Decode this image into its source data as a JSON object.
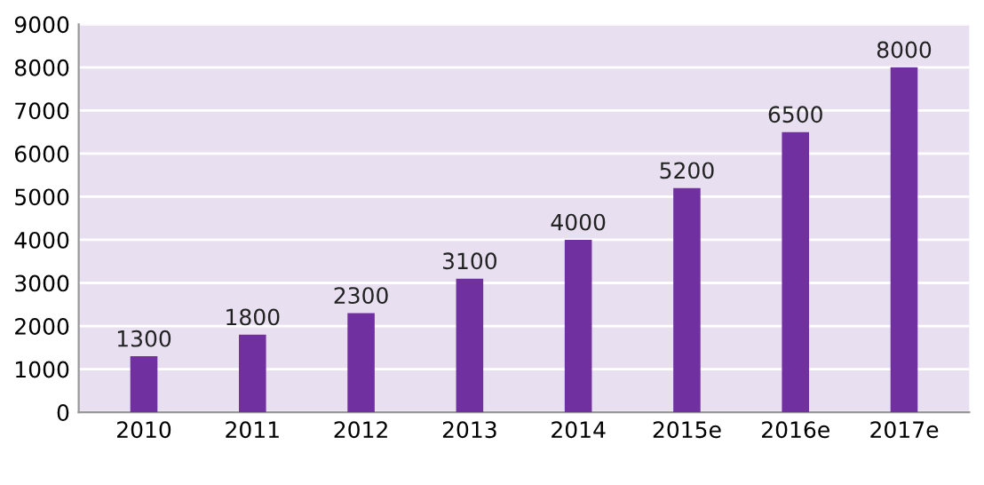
{
  "chart_data": {
    "type": "bar",
    "categories": [
      "2010",
      "2011",
      "2012",
      "2013",
      "2014",
      "2015e",
      "2016e",
      "2017e"
    ],
    "values": [
      1300,
      1800,
      2300,
      3100,
      4000,
      5200,
      6500,
      8000
    ],
    "color": "#7030a0",
    "ylim": [
      0,
      9000
    ],
    "yticks": [
      0,
      1000,
      2000,
      3000,
      4000,
      5000,
      6000,
      7000,
      8000,
      9000
    ],
    "grid": "y",
    "data_labels": true
  }
}
